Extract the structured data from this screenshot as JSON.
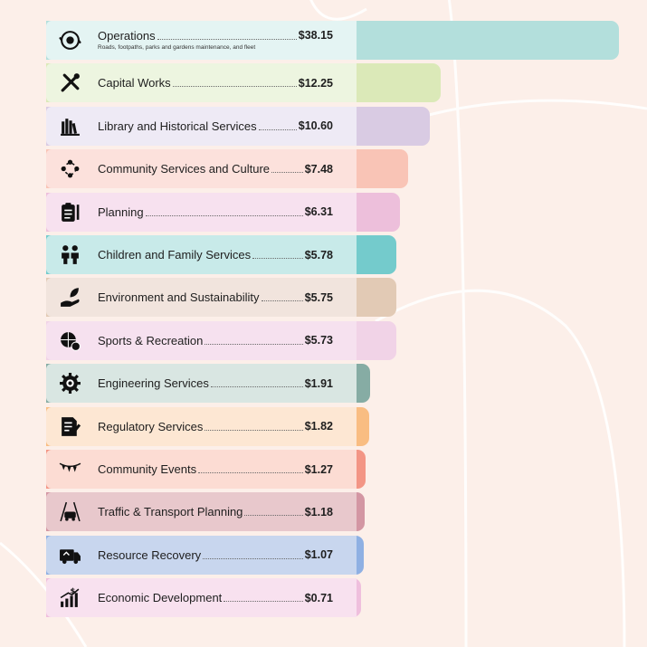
{
  "chart_data": {
    "type": "bar",
    "orientation": "horizontal",
    "title": "",
    "xlabel": "",
    "ylabel": "",
    "items": [
      {
        "label": "Operations",
        "display": "$38.15",
        "value": 38.15,
        "subtitle": "Roads, footpaths, parks and gardens maintenance, and fleet",
        "icon": "gear-cycle-icon",
        "card_color": "#e4f4f3",
        "bar_color": "#b3dfdc"
      },
      {
        "label": "Capital Works",
        "display": "$12.25",
        "value": 12.25,
        "icon": "tools-icon",
        "card_color": "#edf5e0",
        "bar_color": "#dbe9b8"
      },
      {
        "label": "Library and Historical Services",
        "display": "$10.60",
        "value": 10.6,
        "icon": "books-icon",
        "card_color": "#eeeaf5",
        "bar_color": "#d9cbe3"
      },
      {
        "label": "Community Services and Culture",
        "display": "$7.48",
        "value": 7.48,
        "icon": "community-people-icon",
        "card_color": "#fce1dc",
        "bar_color": "#f9c4b6"
      },
      {
        "label": "Planning",
        "display": "$6.31",
        "value": 6.31,
        "icon": "clipboard-plan-icon",
        "card_color": "#f7e1ef",
        "bar_color": "#edbfdb"
      },
      {
        "label": "Children and Family Services",
        "display": "$5.78",
        "value": 5.78,
        "icon": "children-icon",
        "card_color": "#c8eae9",
        "bar_color": "#74cbcc"
      },
      {
        "label": "Environment and Sustainability",
        "display": "$5.75",
        "value": 5.75,
        "icon": "hand-leaf-icon",
        "card_color": "#f1e4dd",
        "bar_color": "#e2cab5"
      },
      {
        "label": "Sports & Recreation",
        "display": "$5.73",
        "value": 5.73,
        "icon": "sports-balls-icon",
        "card_color": "#f6e1ef",
        "bar_color": "#f1d3e7"
      },
      {
        "label": "Engineering Services",
        "display": "$1.91",
        "value": 1.91,
        "icon": "engineering-gear-icon",
        "card_color": "#d9e6e2",
        "bar_color": "#86aca4"
      },
      {
        "label": "Regulatory Services",
        "display": "$1.82",
        "value": 1.82,
        "icon": "document-pen-icon",
        "card_color": "#fde7d3",
        "bar_color": "#f9bd82"
      },
      {
        "label": "Community Events",
        "display": "$1.27",
        "value": 1.27,
        "icon": "bunting-icon",
        "card_color": "#fcdcd3",
        "bar_color": "#f39585"
      },
      {
        "label": "Traffic & Transport Planning",
        "display": "$1.18",
        "value": 1.18,
        "icon": "traffic-car-icon",
        "card_color": "#e8c8cc",
        "bar_color": "#d396a3"
      },
      {
        "label": "Resource Recovery",
        "display": "$1.07",
        "value": 1.07,
        "icon": "recycling-truck-icon",
        "card_color": "#c8d6ee",
        "bar_color": "#8fb0e3"
      },
      {
        "label": "Economic Development",
        "display": "$0.71",
        "value": 0.71,
        "icon": "growth-chart-icon",
        "card_color": "#f8e1ef",
        "bar_color": "#efbfdd"
      }
    ]
  }
}
